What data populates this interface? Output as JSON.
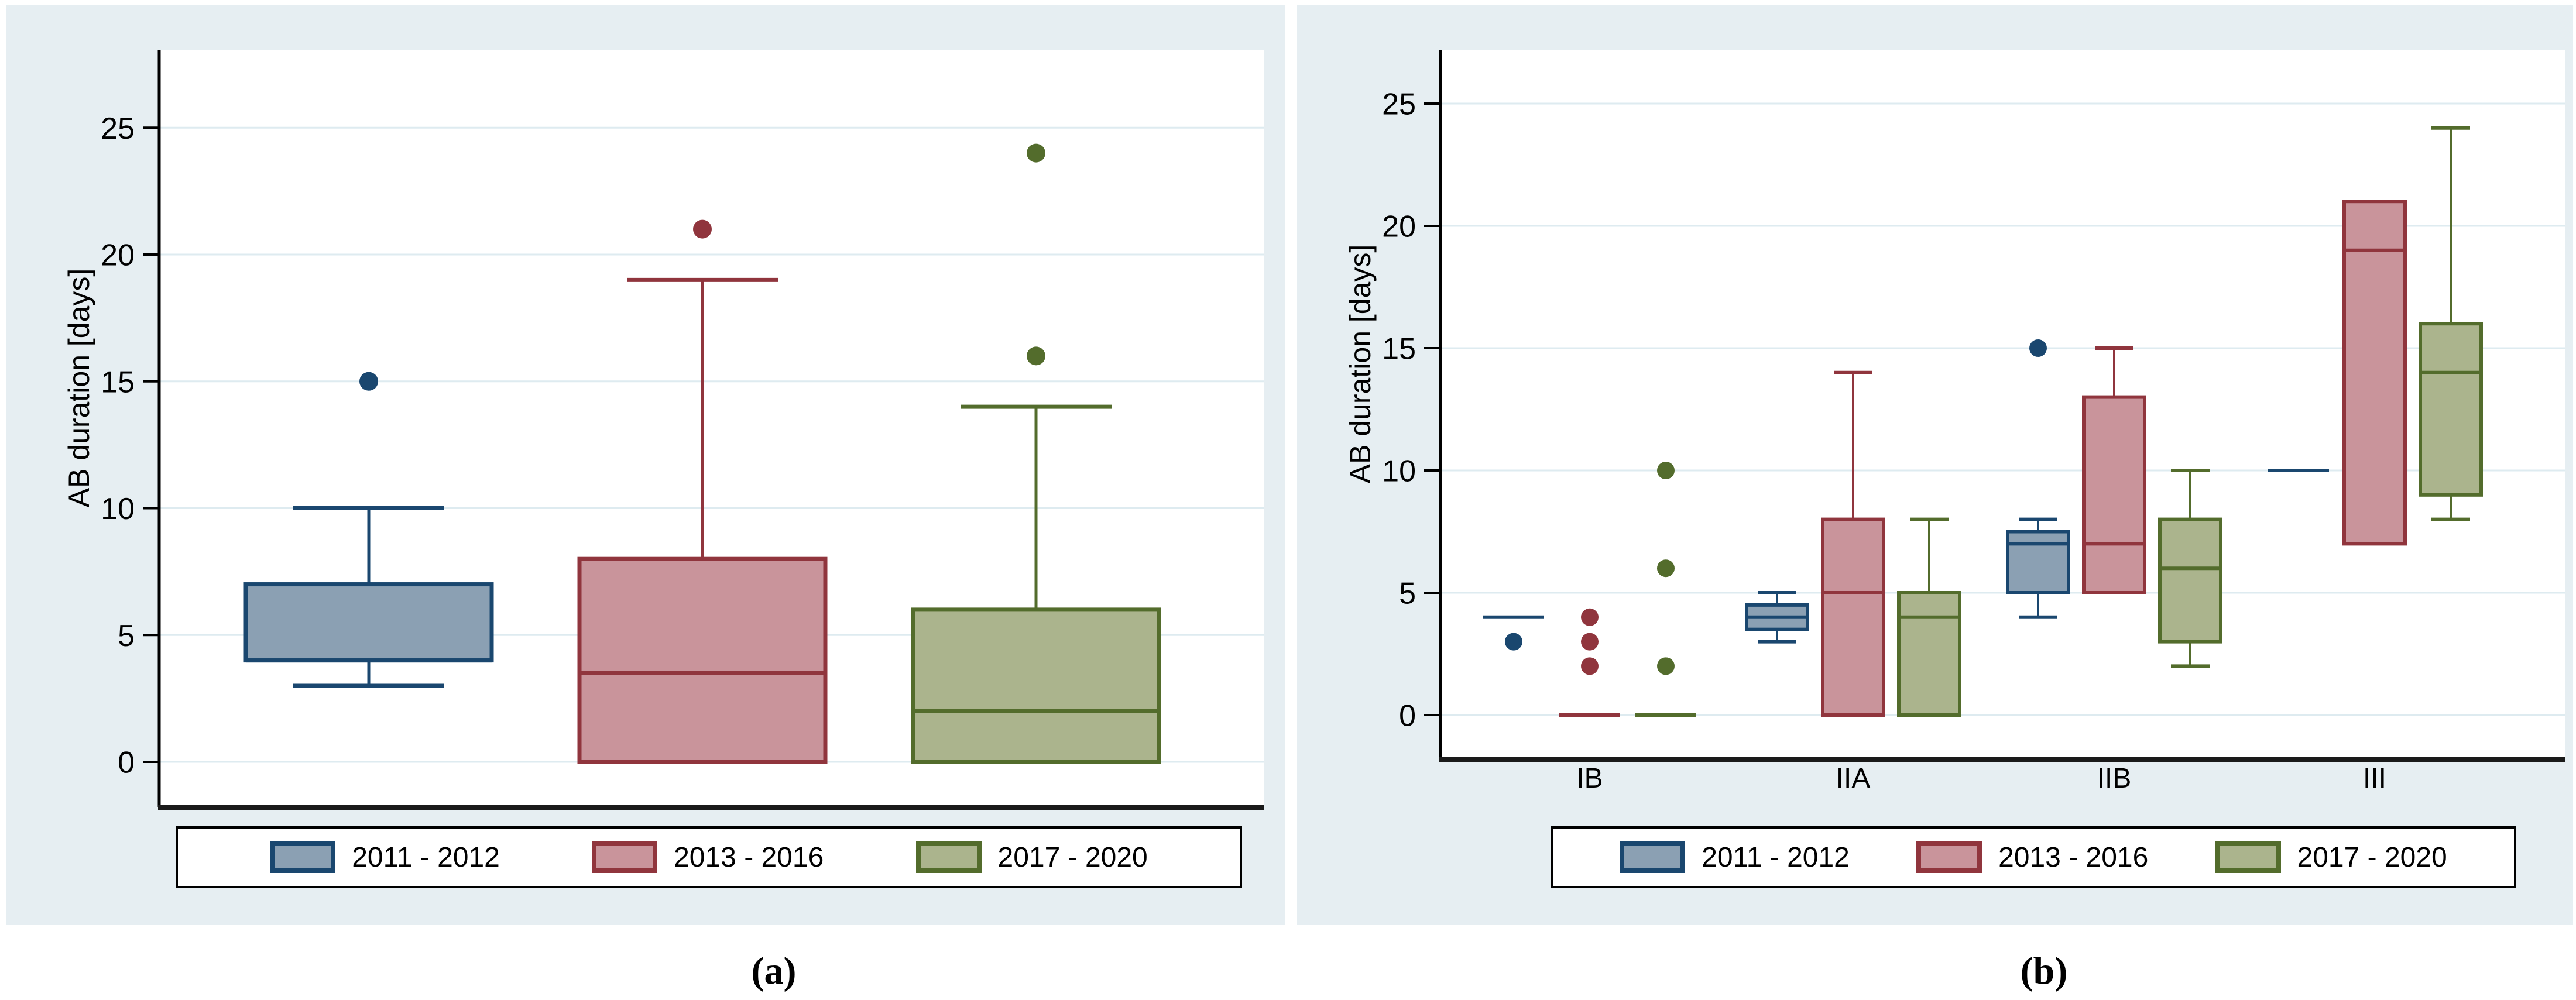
{
  "chart_data": {
    "type": "box",
    "series": [
      {
        "name": "2011 - 2012",
        "fill": "#8ba0b3",
        "stroke": "#1a476f"
      },
      {
        "name": "2013 - 2016",
        "fill": "#c9949b",
        "stroke": "#90353d"
      },
      {
        "name": "2017 - 2020",
        "fill": "#abb48d",
        "stroke": "#536c2c"
      }
    ],
    "style": {
      "panel_bg": "#e6eef2",
      "plot_bg": "#ffffff",
      "gridline_color": "#deebf0",
      "axis_color": "#000000",
      "text_color": "#000000"
    },
    "panels": [
      {
        "id": "a",
        "caption": "(a)",
        "ylabel": "AB duration [days]",
        "yticks": [
          0,
          5,
          10,
          15,
          20,
          25
        ],
        "ylim": [
          -1.9,
          28
        ],
        "grid": true,
        "legend_position": "bottom",
        "groups": [
          {
            "label": "",
            "boxes": [
              {
                "whislo": 3,
                "q1": 4,
                "med": 4,
                "q3": 7,
                "whishi": 10,
                "out": [
                  15
                ]
              },
              {
                "whislo": null,
                "q1": 0,
                "med": 3.5,
                "q3": 8,
                "whishi": 19,
                "out": [
                  21
                ]
              },
              {
                "whislo": null,
                "q1": 0,
                "med": 2,
                "q3": 6,
                "whishi": 14,
                "out": [
                  16,
                  24
                ]
              }
            ]
          }
        ]
      },
      {
        "id": "b",
        "caption": "(b)",
        "ylabel": "AB duration [days]",
        "yticks": [
          0,
          5,
          10,
          15,
          20,
          25
        ],
        "ylim": [
          -1.9,
          27.2
        ],
        "grid": true,
        "legend_position": "bottom",
        "groups": [
          {
            "label": "IB",
            "boxes": [
              {
                "whislo": null,
                "q1": 4,
                "med": 4,
                "q3": 4,
                "whishi": null,
                "out": [
                  3
                ]
              },
              {
                "whislo": null,
                "q1": 0,
                "med": 0,
                "q3": 0,
                "whishi": null,
                "out": [
                  2,
                  3,
                  4
                ]
              },
              {
                "whislo": null,
                "q1": 0,
                "med": 0,
                "q3": 0,
                "whishi": null,
                "out": [
                  2,
                  6,
                  10
                ]
              }
            ]
          },
          {
            "label": "IIA",
            "boxes": [
              {
                "whislo": 3,
                "q1": 3.5,
                "med": 4,
                "q3": 4.5,
                "whishi": 5,
                "out": []
              },
              {
                "whislo": null,
                "q1": 0,
                "med": 5,
                "q3": 8,
                "whishi": 14,
                "out": []
              },
              {
                "whislo": null,
                "q1": 0,
                "med": 4,
                "q3": 5,
                "whishi": 8,
                "out": []
              }
            ]
          },
          {
            "label": "IIB",
            "boxes": [
              {
                "whislo": 4,
                "q1": 5,
                "med": 7,
                "q3": 7.5,
                "whishi": 8,
                "out": [
                  15
                ]
              },
              {
                "whislo": null,
                "q1": 5,
                "med": 7,
                "q3": 13,
                "whishi": 15,
                "out": []
              },
              {
                "whislo": 2,
                "q1": 3,
                "med": 6,
                "q3": 8,
                "whishi": 10,
                "out": []
              }
            ]
          },
          {
            "label": "III",
            "boxes": [
              {
                "whislo": null,
                "q1": 10,
                "med": 10,
                "q3": 10,
                "whishi": null,
                "out": []
              },
              {
                "whislo": null,
                "q1": 7,
                "med": 19,
                "q3": 21,
                "whishi": null,
                "out": []
              },
              {
                "whislo": 8,
                "q1": 9,
                "med": 14,
                "q3": 16,
                "whishi": 24,
                "out": []
              }
            ]
          }
        ]
      }
    ]
  }
}
